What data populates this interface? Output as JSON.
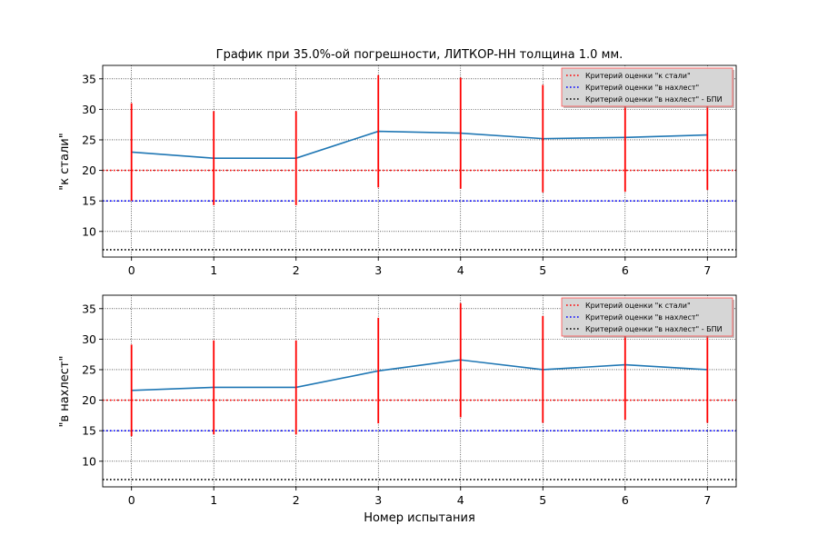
{
  "chart_data": {
    "type": "line",
    "title": "График при 35.0%-ой погрешности, ЛИТКОР-НН толщина 1.0 мм.",
    "xlabel": "Номер испытания",
    "colors": {
      "series": "#1f77b4",
      "error_bars": "#ff0000",
      "grid": "#000000"
    },
    "legend_placement": "top-right",
    "grid": true,
    "panels": [
      {
        "ylabel": "\"к стали\"",
        "xlim": [
          -0.35,
          7.35
        ],
        "ylim": [
          5.8,
          37.2
        ],
        "x_ticks": [
          0,
          1,
          2,
          3,
          4,
          5,
          6,
          7
        ],
        "y_ticks": [
          10,
          15,
          20,
          25,
          30,
          35
        ],
        "x": [
          0,
          1,
          2,
          3,
          4,
          5,
          6,
          7
        ],
        "values": [
          23.0,
          22.0,
          22.0,
          26.4,
          26.1,
          25.2,
          25.4,
          25.8
        ],
        "error_low": [
          15.0,
          14.3,
          14.3,
          17.2,
          17.0,
          16.4,
          16.5,
          16.8
        ],
        "error_high": [
          31.0,
          29.7,
          29.7,
          35.6,
          35.2,
          34.0,
          34.3,
          34.8
        ],
        "reference_lines": [
          {
            "label": "Критерий оценки \"к стали\"",
            "value": 20,
            "color": "#ff0000"
          },
          {
            "label": "Критерий оценки \"в нахлест\"",
            "value": 15,
            "color": "#0000ff"
          },
          {
            "label": "Критерий оценки \"в нахлест\" - БПИ",
            "value": 7,
            "color": "#000000"
          }
        ]
      },
      {
        "ylabel": "\"в нахлест\"",
        "xlim": [
          -0.35,
          7.35
        ],
        "ylim": [
          5.8,
          37.2
        ],
        "x_ticks": [
          0,
          1,
          2,
          3,
          4,
          5,
          6,
          7
        ],
        "y_ticks": [
          10,
          15,
          20,
          25,
          30,
          35
        ],
        "x": [
          0,
          1,
          2,
          3,
          4,
          5,
          6,
          7
        ],
        "values": [
          21.6,
          22.1,
          22.1,
          24.8,
          26.6,
          25.0,
          25.8,
          25.0
        ],
        "error_low": [
          14.1,
          14.4,
          14.4,
          16.2,
          17.2,
          16.3,
          16.8,
          16.3
        ],
        "error_high": [
          29.1,
          29.8,
          29.8,
          33.5,
          35.9,
          33.8,
          34.8,
          33.8
        ],
        "reference_lines": [
          {
            "label": "Критерий оценки \"к стали\"",
            "value": 20,
            "color": "#ff0000"
          },
          {
            "label": "Критерий оценки \"в нахлест\"",
            "value": 15,
            "color": "#0000ff"
          },
          {
            "label": "Критерий оценки \"в нахлест\" - БПИ",
            "value": 7,
            "color": "#000000"
          }
        ]
      }
    ]
  }
}
